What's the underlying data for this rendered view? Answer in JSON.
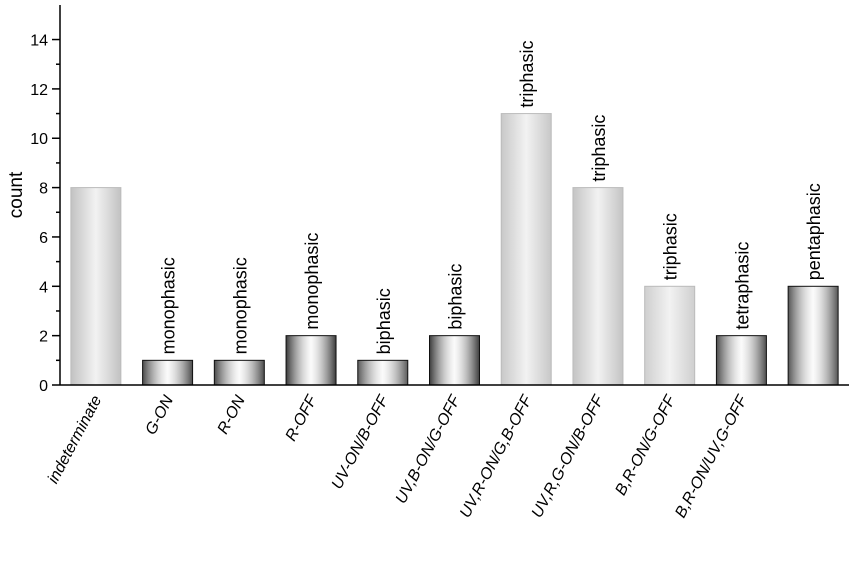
{
  "chart_data": {
    "type": "bar",
    "ylabel": "count",
    "categories": [
      "indeterminate",
      "G-ON",
      "R-ON",
      "R-OFF",
      "UV-ON/B-OFF",
      "UV,B-ON/G-OFF",
      "UV,R-ON/G,B-OFF",
      "UV,R,G-ON/B-OFF",
      "B,R-ON/G-OFF",
      "B,R-ON/UV,G-OFF",
      null
    ],
    "values": [
      8,
      1,
      1,
      2,
      1,
      2,
      11,
      8,
      4,
      2,
      4
    ],
    "annotations": [
      null,
      "monophasic",
      "monophasic",
      "monophasic",
      "biphasic",
      "biphasic",
      "triphasic",
      "triphasic",
      "triphasic",
      "tetraphasic",
      "pentaphasic"
    ],
    "colors": [
      "#c2c2c2",
      "#4a4a4a",
      "#4a4a4a",
      "#3a3a3a",
      "#5a5a5a",
      "#3c3c3c",
      "#c8c8c8",
      "#c4c4c4",
      "#cfcfcf",
      "#4c4c4c",
      "#555555"
    ],
    "ylim": [
      0,
      15.4
    ],
    "yticks": [
      0,
      2,
      4,
      6,
      8,
      10,
      12,
      14
    ]
  }
}
